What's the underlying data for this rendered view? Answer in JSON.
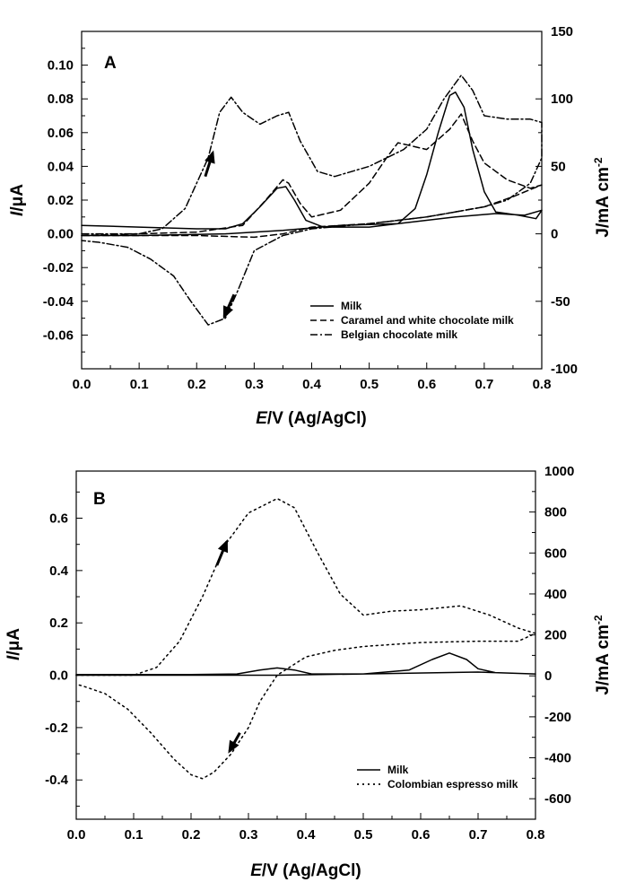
{
  "chart_data": [
    {
      "type": "line",
      "panel_label": "A",
      "xlabel_italic": "E",
      "xlabel_rest": "/V (Ag/AgCl)",
      "ylabel_left_italic": "I",
      "ylabel_left_rest": "/μA",
      "ylabel_right": "J/mA cm",
      "ylabel_right_sup": "-2",
      "xlim": [
        0.0,
        0.8
      ],
      "ylim_left": [
        -0.08,
        0.12
      ],
      "ylim_right": [
        -100,
        150
      ],
      "xticks": [
        "0.0",
        "0.1",
        "0.2",
        "0.3",
        "0.4",
        "0.5",
        "0.6",
        "0.7",
        "0.8"
      ],
      "yticks_left": [
        "-0.06",
        "-0.04",
        "-0.02",
        "0.00",
        "0.02",
        "0.04",
        "0.06",
        "0.08",
        "0.10"
      ],
      "yticks_right": [
        "-100",
        "-50",
        "0",
        "50",
        "100",
        "150"
      ],
      "legend": [
        {
          "label": "Milk",
          "style": "solid"
        },
        {
          "label": "Caramel and white chocolate milk",
          "style": "dash"
        },
        {
          "label": "Belgian chocolate milk",
          "style": "dashdot"
        }
      ],
      "series": [
        {
          "name": "Milk",
          "style": "solid",
          "points": [
            [
              0.0,
              0.005
            ],
            [
              0.1,
              0.004
            ],
            [
              0.2,
              0.003
            ],
            [
              0.25,
              0.003
            ],
            [
              0.28,
              0.006
            ],
            [
              0.31,
              0.016
            ],
            [
              0.34,
              0.027
            ],
            [
              0.355,
              0.028
            ],
            [
              0.37,
              0.02
            ],
            [
              0.39,
              0.008
            ],
            [
              0.42,
              0.004
            ],
            [
              0.5,
              0.004
            ],
            [
              0.55,
              0.006
            ],
            [
              0.58,
              0.015
            ],
            [
              0.6,
              0.035
            ],
            [
              0.62,
              0.06
            ],
            [
              0.64,
              0.082
            ],
            [
              0.65,
              0.084
            ],
            [
              0.665,
              0.075
            ],
            [
              0.68,
              0.05
            ],
            [
              0.7,
              0.025
            ],
            [
              0.72,
              0.013
            ],
            [
              0.76,
              0.011
            ],
            [
              0.79,
              0.009
            ],
            [
              0.8,
              0.014
            ],
            [
              0.77,
              0.011
            ],
            [
              0.72,
              0.012
            ],
            [
              0.65,
              0.01
            ],
            [
              0.55,
              0.006
            ],
            [
              0.45,
              0.005
            ],
            [
              0.35,
              0.002
            ],
            [
              0.25,
              0.0
            ],
            [
              0.1,
              -0.001
            ],
            [
              0.0,
              -0.001
            ]
          ]
        },
        {
          "name": "Caramel and white chocolate milk",
          "style": "dash",
          "points": [
            [
              0.0,
              -0.001
            ],
            [
              0.1,
              0.0
            ],
            [
              0.2,
              0.001
            ],
            [
              0.28,
              0.005
            ],
            [
              0.32,
              0.02
            ],
            [
              0.35,
              0.032
            ],
            [
              0.36,
              0.03
            ],
            [
              0.38,
              0.018
            ],
            [
              0.4,
              0.01
            ],
            [
              0.45,
              0.014
            ],
            [
              0.5,
              0.03
            ],
            [
              0.53,
              0.045
            ],
            [
              0.55,
              0.054
            ],
            [
              0.6,
              0.05
            ],
            [
              0.64,
              0.062
            ],
            [
              0.66,
              0.071
            ],
            [
              0.68,
              0.055
            ],
            [
              0.7,
              0.042
            ],
            [
              0.74,
              0.032
            ],
            [
              0.78,
              0.027
            ],
            [
              0.8,
              0.029
            ],
            [
              0.75,
              0.022
            ],
            [
              0.7,
              0.016
            ],
            [
              0.6,
              0.01
            ],
            [
              0.5,
              0.006
            ],
            [
              0.4,
              0.004
            ],
            [
              0.35,
              0.0
            ],
            [
              0.3,
              -0.002
            ],
            [
              0.2,
              -0.001
            ],
            [
              0.0,
              -0.001
            ]
          ]
        },
        {
          "name": "Belgian chocolate milk",
          "style": "dashdot",
          "points": [
            [
              0.0,
              0.0
            ],
            [
              0.1,
              0.0
            ],
            [
              0.14,
              0.003
            ],
            [
              0.18,
              0.015
            ],
            [
              0.22,
              0.045
            ],
            [
              0.24,
              0.072
            ],
            [
              0.26,
              0.081
            ],
            [
              0.28,
              0.072
            ],
            [
              0.31,
              0.065
            ],
            [
              0.34,
              0.07
            ],
            [
              0.36,
              0.072
            ],
            [
              0.38,
              0.055
            ],
            [
              0.41,
              0.037
            ],
            [
              0.44,
              0.034
            ],
            [
              0.5,
              0.04
            ],
            [
              0.56,
              0.05
            ],
            [
              0.6,
              0.062
            ],
            [
              0.63,
              0.08
            ],
            [
              0.66,
              0.094
            ],
            [
              0.68,
              0.085
            ],
            [
              0.7,
              0.07
            ],
            [
              0.74,
              0.068
            ],
            [
              0.78,
              0.068
            ],
            [
              0.8,
              0.066
            ],
            [
              0.8,
              0.045
            ],
            [
              0.78,
              0.03
            ],
            [
              0.74,
              0.02
            ],
            [
              0.7,
              0.016
            ],
            [
              0.6,
              0.01
            ],
            [
              0.5,
              0.006
            ],
            [
              0.4,
              0.003
            ],
            [
              0.35,
              -0.001
            ],
            [
              0.3,
              -0.01
            ],
            [
              0.27,
              -0.035
            ],
            [
              0.25,
              -0.05
            ],
            [
              0.22,
              -0.054
            ],
            [
              0.19,
              -0.04
            ],
            [
              0.16,
              -0.025
            ],
            [
              0.12,
              -0.015
            ],
            [
              0.08,
              -0.008
            ],
            [
              0.03,
              -0.005
            ],
            [
              0.0,
              -0.004
            ]
          ]
        }
      ],
      "arrows": [
        {
          "from": [
            0.215,
            0.034
          ],
          "to": [
            0.228,
            0.048
          ]
        },
        {
          "from": [
            0.265,
            -0.036
          ],
          "to": [
            0.248,
            -0.049
          ]
        }
      ]
    },
    {
      "type": "line",
      "panel_label": "B",
      "xlabel_italic": "E",
      "xlabel_rest": "/V (Ag/AgCl)",
      "ylabel_left_italic": "I",
      "ylabel_left_rest": "/μA",
      "ylabel_right": "J/mA cm",
      "ylabel_right_sup": "-2",
      "xlim": [
        0.0,
        0.8
      ],
      "ylim_left": [
        -0.55,
        0.78
      ],
      "ylim_right": [
        -700,
        1000
      ],
      "xticks": [
        "0.0",
        "0.1",
        "0.2",
        "0.3",
        "0.4",
        "0.5",
        "0.6",
        "0.7",
        "0.8"
      ],
      "yticks_left": [
        "-0.4",
        "-0.2",
        "0.0",
        "0.2",
        "0.4",
        "0.6"
      ],
      "yticks_right": [
        "-600",
        "-400",
        "-200",
        "0",
        "200",
        "400",
        "600",
        "800",
        "1000"
      ],
      "legend": [
        {
          "label": "Milk",
          "style": "solid"
        },
        {
          "label": "Colombian espresso milk",
          "style": "dot"
        }
      ],
      "series": [
        {
          "name": "Milk",
          "style": "solid",
          "points": [
            [
              0.0,
              0.003
            ],
            [
              0.2,
              0.003
            ],
            [
              0.28,
              0.005
            ],
            [
              0.32,
              0.02
            ],
            [
              0.35,
              0.028
            ],
            [
              0.38,
              0.02
            ],
            [
              0.41,
              0.005
            ],
            [
              0.5,
              0.005
            ],
            [
              0.58,
              0.02
            ],
            [
              0.62,
              0.06
            ],
            [
              0.65,
              0.085
            ],
            [
              0.68,
              0.06
            ],
            [
              0.7,
              0.025
            ],
            [
              0.73,
              0.01
            ],
            [
              0.8,
              0.005
            ],
            [
              0.7,
              0.012
            ],
            [
              0.5,
              0.005
            ],
            [
              0.35,
              0.0
            ],
            [
              0.2,
              0.0
            ],
            [
              0.0,
              0.0
            ]
          ]
        },
        {
          "name": "Colombian espresso milk",
          "style": "dot",
          "points": [
            [
              0.0,
              0.0
            ],
            [
              0.1,
              0.0
            ],
            [
              0.14,
              0.03
            ],
            [
              0.18,
              0.13
            ],
            [
              0.22,
              0.3
            ],
            [
              0.26,
              0.5
            ],
            [
              0.3,
              0.62
            ],
            [
              0.35,
              0.675
            ],
            [
              0.38,
              0.64
            ],
            [
              0.42,
              0.47
            ],
            [
              0.46,
              0.31
            ],
            [
              0.5,
              0.23
            ],
            [
              0.55,
              0.245
            ],
            [
              0.6,
              0.25
            ],
            [
              0.67,
              0.265
            ],
            [
              0.72,
              0.23
            ],
            [
              0.77,
              0.18
            ],
            [
              0.8,
              0.16
            ],
            [
              0.77,
              0.13
            ],
            [
              0.7,
              0.13
            ],
            [
              0.6,
              0.125
            ],
            [
              0.5,
              0.11
            ],
            [
              0.45,
              0.095
            ],
            [
              0.4,
              0.07
            ],
            [
              0.35,
              0.0
            ],
            [
              0.32,
              -0.1
            ],
            [
              0.3,
              -0.2
            ],
            [
              0.27,
              -0.3
            ],
            [
              0.24,
              -0.37
            ],
            [
              0.22,
              -0.395
            ],
            [
              0.2,
              -0.38
            ],
            [
              0.17,
              -0.32
            ],
            [
              0.13,
              -0.22
            ],
            [
              0.09,
              -0.13
            ],
            [
              0.05,
              -0.07
            ],
            [
              0.01,
              -0.04
            ],
            [
              0.0,
              -0.035
            ]
          ]
        }
      ],
      "arrows": [
        {
          "from": [
            0.245,
            0.42
          ],
          "to": [
            0.262,
            0.51
          ]
        },
        {
          "from": [
            0.285,
            -0.22
          ],
          "to": [
            0.267,
            -0.29
          ]
        }
      ]
    }
  ]
}
